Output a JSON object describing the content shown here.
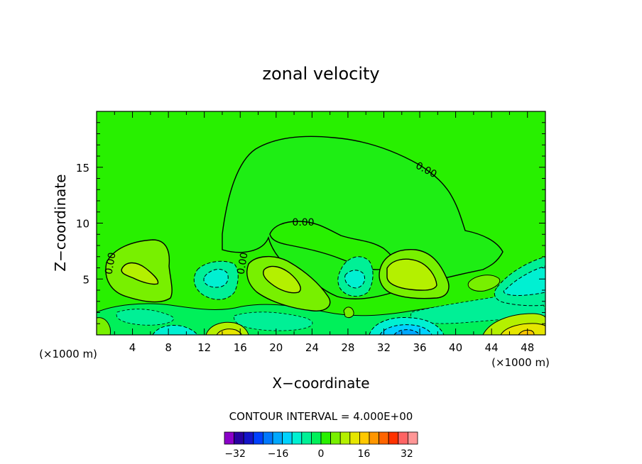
{
  "chart_data": {
    "type": "heatmap",
    "title": "zonal velocity",
    "xlabel": "X−coordinate",
    "ylabel": "Z−coordinate",
    "x_unit": "(×1000 m)",
    "y_unit": "(×1000 m)",
    "xlim": [
      0,
      50
    ],
    "ylim": [
      0,
      20
    ],
    "x_ticks": [
      4,
      8,
      12,
      16,
      20,
      24,
      28,
      32,
      36,
      40,
      44,
      48
    ],
    "y_ticks": [
      5,
      10,
      15
    ],
    "contour_interval_text": "CONTOUR INTERVAL = 4.000E+00",
    "contour_interval": 4,
    "colorbar": {
      "min": -36,
      "max": 36,
      "tick_values": [
        -32,
        -16,
        0,
        16,
        32
      ],
      "tick_labels": [
        "−32",
        "−16",
        "0",
        "16",
        "32"
      ],
      "colors": [
        "#8a00c8",
        "#2800a0",
        "#1414c8",
        "#0040ff",
        "#0078ff",
        "#00a8ff",
        "#00d2ff",
        "#00f0d2",
        "#00f096",
        "#00f05a",
        "#28f000",
        "#78f000",
        "#b4f000",
        "#e6e600",
        "#ffc800",
        "#ff9600",
        "#ff6400",
        "#ff3200",
        "#ff6464",
        "#ff9696"
      ]
    },
    "contour_labels": [
      {
        "text": "0.00",
        "x": 35.5,
        "z": 15.1,
        "angle": 28
      },
      {
        "text": "0.00",
        "x": 22.9,
        "z": 10.1,
        "angle": 0
      },
      {
        "text": "0.00",
        "x": 1.7,
        "z": 6.2,
        "angle": -80
      },
      {
        "text": "0.00",
        "x": 16.5,
        "z": 6.7,
        "angle": -80
      }
    ],
    "features": [
      {
        "name": "upper-zero-dome",
        "sign": "positive",
        "max_value": 0
      },
      {
        "name": "cell-x5",
        "sign": "positive",
        "x": 5.5,
        "z": 5.3,
        "max_value": 8
      },
      {
        "name": "cell-x20",
        "sign": "positive",
        "x": 20,
        "z": 5.1,
        "max_value": 8
      },
      {
        "name": "cell-x34",
        "sign": "positive",
        "x": 34,
        "z": 5.3,
        "max_value": 8
      },
      {
        "name": "neg-x14",
        "sign": "negative",
        "x": 14,
        "z": 5.1,
        "min_value": -4
      },
      {
        "name": "neg-x28",
        "sign": "negative",
        "x": 28.5,
        "z": 5.3,
        "min_value": -4
      },
      {
        "name": "neg-x47",
        "sign": "negative",
        "x": 47,
        "z": 4.8,
        "min_value": -8
      },
      {
        "name": "neg-x33-surface",
        "sign": "negative",
        "x": 33.5,
        "z": 0.4,
        "min_value": -16
      },
      {
        "name": "pos-x48-surface",
        "sign": "positive",
        "x": 48,
        "z": 0.3,
        "max_value": 16
      }
    ]
  }
}
